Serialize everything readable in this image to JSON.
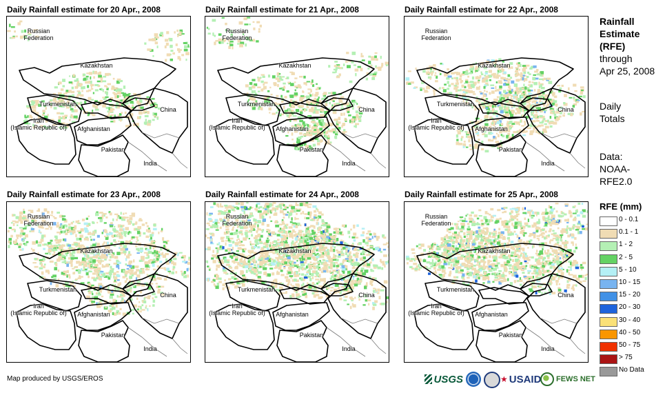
{
  "panels": [
    {
      "title": "Daily Rainfall estimate for 20 Apr., 2008",
      "intensity": 1
    },
    {
      "title": "Daily Rainfall estimate for 21 Apr., 2008",
      "intensity": 1
    },
    {
      "title": "Daily Rainfall estimate for 22 Apr., 2008",
      "intensity": 2
    },
    {
      "title": "Daily Rainfall estimate for 23 Apr., 2008",
      "intensity": 2
    },
    {
      "title": "Daily Rainfall estimate for 24 Apr., 2008",
      "intensity": 3
    },
    {
      "title": "Daily Rainfall estimate for 25 Apr., 2008",
      "intensity": 3
    }
  ],
  "map_labels": {
    "russia": "Russian Federation",
    "russia_line1": "Russian",
    "russia_line2": "Federation",
    "kazakhstan": "Kazakhstan",
    "turkmenistan": "Turkmenistan",
    "iran_line1": "Iran",
    "iran_line2": "(Islamic Republic of)",
    "afghanistan": "Afghanistan",
    "pakistan": "Pakistan",
    "china": "China",
    "india": "India"
  },
  "side": {
    "title_line1": "Rainfall",
    "title_line2": "Estimate",
    "title_line3": "(RFE)",
    "through_line1": "through",
    "through_line2": "Apr 25, 2008",
    "totals_line1": "Daily",
    "totals_line2": "Totals",
    "data_line1": "Data:",
    "data_line2": "NOAA-",
    "data_line3": "RFE2.0"
  },
  "legend": {
    "title": "RFE (mm)",
    "items": [
      {
        "label": "0 - 0.1",
        "color": "#ffffff"
      },
      {
        "label": "0.1 - 1",
        "color": "#f0dcb4"
      },
      {
        "label": "1 - 2",
        "color": "#b4f0b4"
      },
      {
        "label": "2 - 5",
        "color": "#64d264"
      },
      {
        "label": "5 - 10",
        "color": "#b4f0f5"
      },
      {
        "label": "10 - 15",
        "color": "#78b4f0"
      },
      {
        "label": "15 - 20",
        "color": "#4191e6"
      },
      {
        "label": "20 - 30",
        "color": "#1e64dc"
      },
      {
        "label": "30 - 40",
        "color": "#fae178"
      },
      {
        "label": "40 - 50",
        "color": "#fa9600"
      },
      {
        "label": "50 - 75",
        "color": "#f03200"
      },
      {
        "label": "> 75",
        "color": "#aa1414"
      },
      {
        "label": "No Data",
        "color": "#999999"
      }
    ]
  },
  "footer": {
    "credit": "Map produced by USGS/EROS",
    "usgs": "USGS",
    "usaid": "USAID",
    "fews": "FEWS NET"
  },
  "icons": {
    "usgs_logo": "usgs-logo-icon",
    "noaa_logo": "noaa-logo-icon",
    "seal_logo": "seal-logo-icon",
    "usaid_logo": "usaid-logo-icon",
    "fews_logo": "fews-net-logo-icon"
  }
}
